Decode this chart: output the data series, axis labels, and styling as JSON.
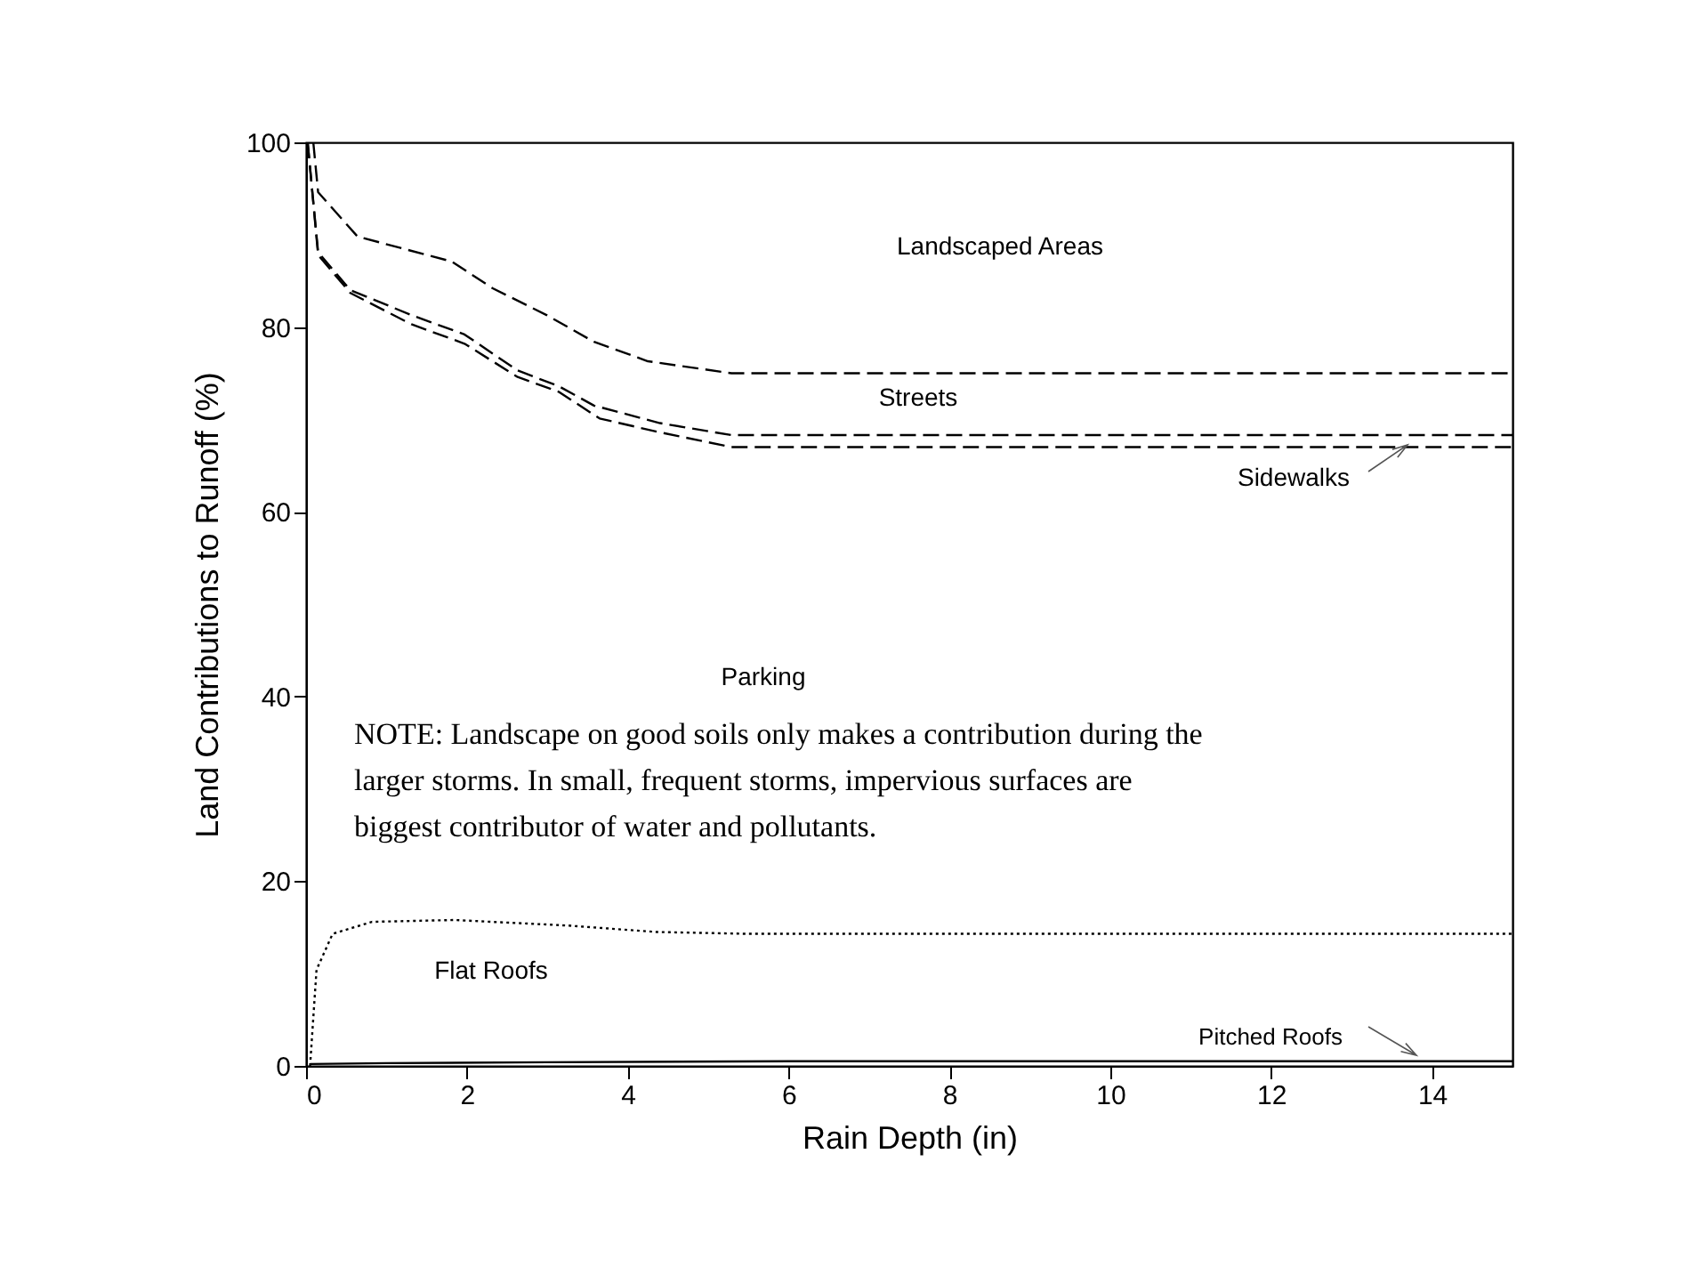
{
  "chart_data": {
    "type": "line",
    "xlabel": "Rain Depth (in)",
    "ylabel": "Land Contributions to Runoff (%)",
    "xlim": [
      0,
      15
    ],
    "ylim": [
      0,
      100
    ],
    "xticks": [
      0,
      2,
      4,
      6,
      8,
      10,
      12,
      14
    ],
    "yticks": [
      0,
      20,
      40,
      60,
      80,
      100
    ],
    "grid": false,
    "marker": "none",
    "series": [
      {
        "color": "#000000",
        "line_style": "dashed",
        "x": [
          0.09,
          0.15,
          0.64,
          1.81,
          2.32,
          2.99,
          3.58,
          4.25,
          5.29,
          15
        ],
        "values": [
          100,
          94.6,
          89.8,
          87.1,
          84.2,
          81.3,
          78.4,
          76.3,
          75,
          75
        ]
      },
      {
        "color": "#000000",
        "line_style": "dashed",
        "x": [
          0.02,
          0.15,
          0.55,
          1.31,
          1.97,
          2.63,
          3.14,
          3.58,
          4.4,
          5.29,
          15
        ],
        "values": [
          100,
          88.1,
          84,
          81.3,
          79.2,
          75.3,
          73.6,
          71.5,
          69.6,
          68.3,
          68.3
        ]
      },
      {
        "color": "#000000",
        "line_style": "dashed",
        "x": [
          0.02,
          0.15,
          0.55,
          1.31,
          1.97,
          2.63,
          3.14,
          3.65,
          4.4,
          5.29,
          15
        ],
        "values": [
          100,
          87.8,
          83.7,
          80.3,
          78.2,
          74.6,
          73,
          70.1,
          68.6,
          67,
          67
        ]
      },
      {
        "color": "#000000",
        "line_style": "dotted",
        "x": [
          0.05,
          0.13,
          0.33,
          0.82,
          1.84,
          3.25,
          4.36,
          5.5,
          15
        ],
        "values": [
          0,
          10.4,
          14.3,
          15.6,
          15.8,
          15.2,
          14.5,
          14.3,
          14.3
        ]
      },
      {
        "color": "#000000",
        "line_style": "solid",
        "x": [
          0.05,
          1,
          3,
          6,
          15
        ],
        "values": [
          0.2,
          0.3,
          0.4,
          0.5,
          0.5
        ]
      }
    ],
    "annotations": [
      "Landscaped Areas",
      "Streets",
      "Sidewalks",
      "Parking",
      "NOTE: Landscape on good soils only makes a contribution during the larger storms. In small, frequent storms, impervious surfaces are biggest contributor of water and pollutants.",
      "Flat Roofs",
      "Pitched Roofs"
    ]
  }
}
